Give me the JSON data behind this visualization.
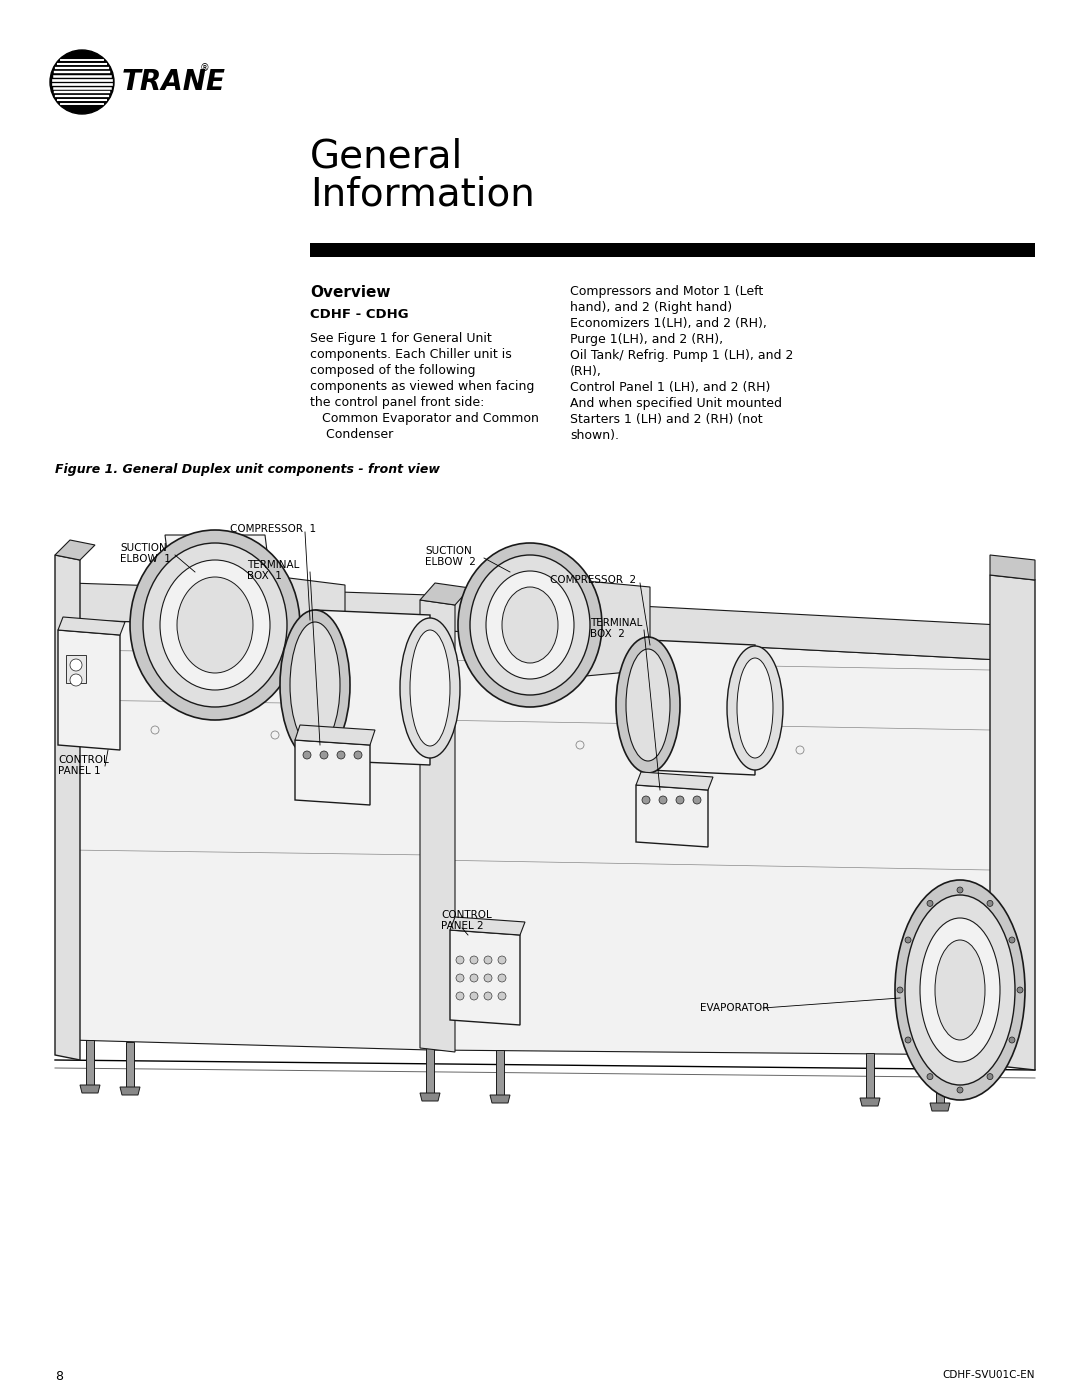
{
  "bg_color": "#ffffff",
  "page_width": 10.8,
  "page_height": 13.97,
  "section_title_line1": "General",
  "section_title_line2": "Information",
  "overview_title": "Overview",
  "model_label": "CDHF - CDHG",
  "left_body_lines": [
    "See Figure 1 for General Unit",
    "components. Each Chiller unit is",
    "composed of the following",
    "components as viewed when facing",
    "the control panel front side:",
    "   Common Evaporator and Common",
    "    Condenser"
  ],
  "right_body_lines": [
    "Compressors and Motor 1 (Left",
    "hand), and 2 (Right hand)",
    "Economizers 1(LH), and 2 (RH),",
    "Purge 1(LH), and 2 (RH),",
    "Oil Tank/ Refrig. Pump 1 (LH), and 2",
    "(RH),",
    "Control Panel 1 (LH), and 2 (RH)",
    "And when specified Unit mounted",
    "Starters 1 (LH) and 2 (RH) (not",
    "shown)."
  ],
  "figure_caption": "Figure 1. General Duplex unit components - front view",
  "page_number": "8",
  "footer_right": "CDHF-SVU01C-EN"
}
